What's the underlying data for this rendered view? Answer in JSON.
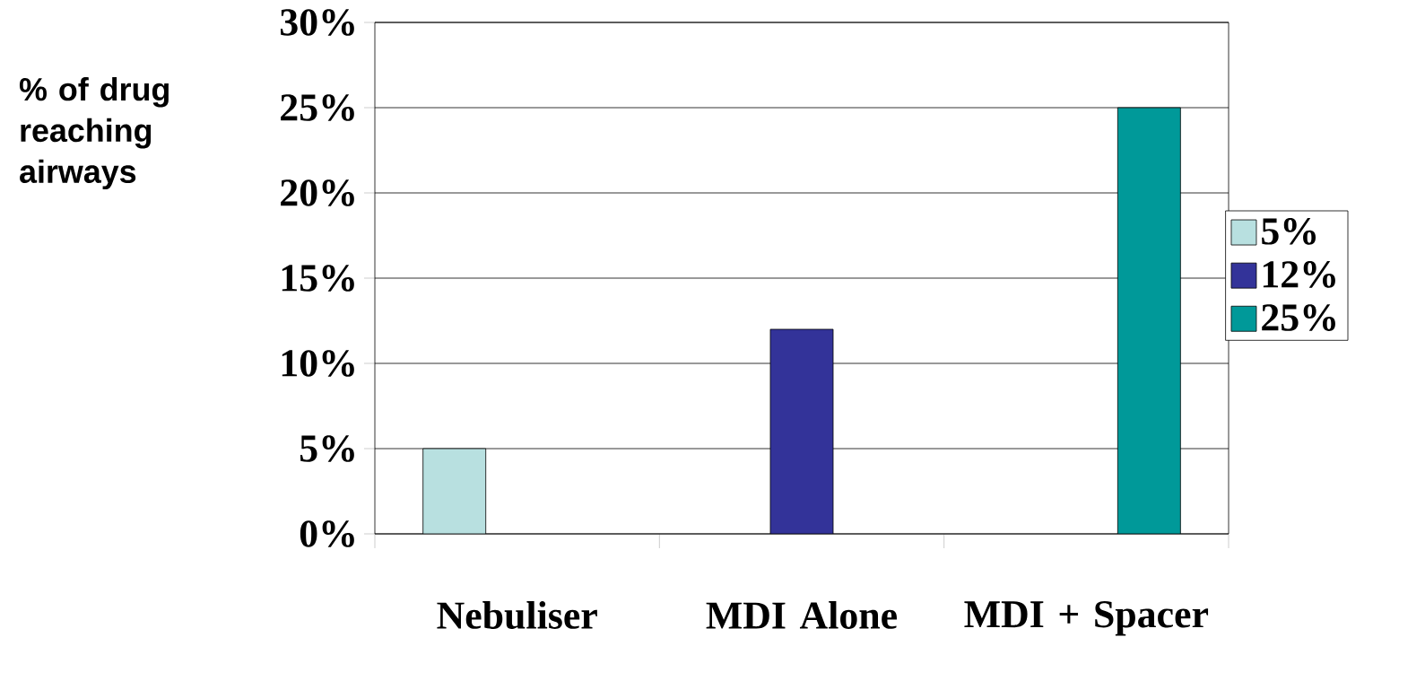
{
  "chart_data": {
    "type": "bar",
    "ylabel": "% of drug reaching airways",
    "categories": [
      "Nebuliser",
      "MDI Alone",
      "MDI + Spacer"
    ],
    "series": [
      {
        "name": "5%",
        "color": "#b8e0e0",
        "values": [
          5,
          null,
          null
        ]
      },
      {
        "name": "12%",
        "color": "#333399",
        "values": [
          null,
          12,
          null
        ]
      },
      {
        "name": "25%",
        "color": "#009999",
        "values": [
          null,
          null,
          25
        ]
      }
    ],
    "ylim": [
      0,
      30
    ],
    "yticks": [
      {
        "value": 0,
        "label": "0%"
      },
      {
        "value": 5,
        "label": "5%"
      },
      {
        "value": 10,
        "label": "10%"
      },
      {
        "value": 15,
        "label": "15%"
      },
      {
        "value": 20,
        "label": "20%"
      },
      {
        "value": 25,
        "label": "25%"
      },
      {
        "value": 30,
        "label": "30%"
      }
    ],
    "grid": "y",
    "legend": "right"
  }
}
